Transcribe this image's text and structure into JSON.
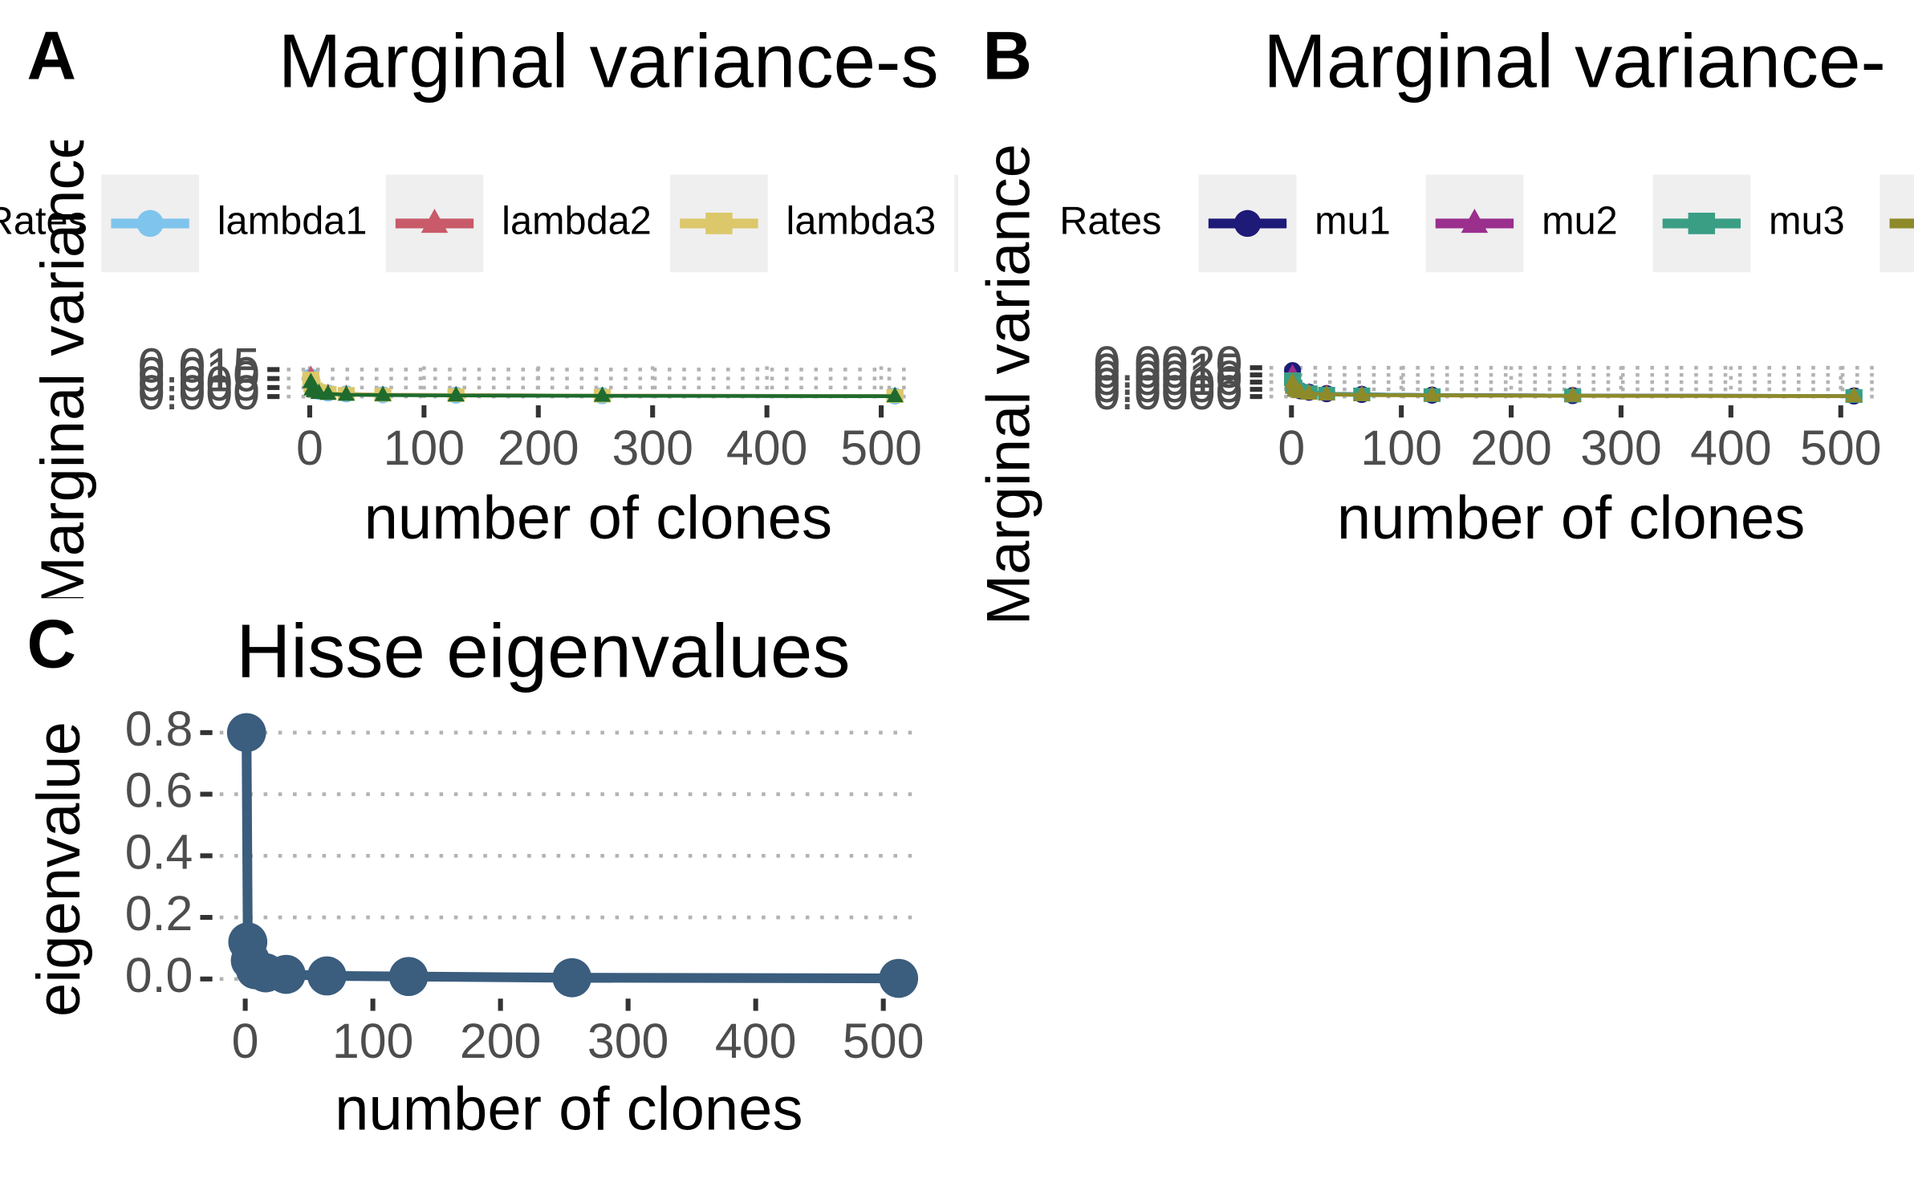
{
  "chart_data": [
    {
      "type": "line",
      "panel": "A",
      "title": "Marginal variance-s",
      "xlabel": "number of clones",
      "ylabel": "Marginal variance",
      "legend_title": "Rates",
      "x": [
        1,
        2,
        4,
        8,
        16,
        32,
        64,
        128,
        256,
        512
      ],
      "series": [
        {
          "name": "lambda1",
          "color": "#7fc4ec",
          "marker": "circle",
          "values": [
            0.011,
            0.006,
            0.004,
            0.003,
            0.002,
            0.0015,
            0.001,
            0.0008,
            0.0005,
            0.0003
          ]
        },
        {
          "name": "lambda2",
          "color": "#c85a6a",
          "marker": "triangle",
          "values": [
            0.012,
            0.007,
            0.004,
            0.003,
            0.002,
            0.0015,
            0.001,
            0.0008,
            0.0005,
            0.0003
          ]
        },
        {
          "name": "lambda3",
          "color": "#dcc76a",
          "marker": "square",
          "values": [
            0.01,
            0.006,
            0.004,
            0.003,
            0.002,
            0.0015,
            0.001,
            0.0008,
            0.0005,
            0.0003
          ]
        },
        {
          "color": "#1f6b2e",
          "marker": "triangle",
          "values": [
            0.008,
            0.004,
            0.003,
            0.002,
            0.0015,
            0.001,
            0.0008,
            0.0006,
            0.0004,
            0.0002
          ]
        }
      ],
      "xlim": [
        -20,
        530
      ],
      "xticks": [
        0,
        100,
        200,
        300,
        400,
        500
      ],
      "ylim": [
        -0.0008,
        0.0168
      ],
      "yticks": [
        {
          "value": 0,
          "label": "0.000"
        },
        {
          "value": 0.005,
          "label": "0.005"
        },
        {
          "value": 0.01,
          "label": "0.010"
        },
        {
          "value": 0.015,
          "label": "0.015"
        }
      ],
      "grid": "both"
    },
    {
      "type": "line",
      "panel": "B",
      "title": "Marginal variance-",
      "xlabel": "number of clones",
      "ylabel": "Marginal variance",
      "legend_title": "Rates",
      "x": [
        1,
        2,
        4,
        8,
        16,
        32,
        64,
        128,
        256,
        512
      ],
      "series": [
        {
          "name": "mu1",
          "color": "#1e1a78",
          "marker": "circle",
          "values": [
            0.0018,
            0.0009,
            0.0005,
            0.0004,
            0.0003,
            0.0002,
            0.00015,
            0.0001,
            7e-05,
            4e-05
          ]
        },
        {
          "name": "mu2",
          "color": "#9a2f8e",
          "marker": "triangle",
          "values": [
            0.0016,
            0.0008,
            0.0005,
            0.0004,
            0.0003,
            0.0002,
            0.00015,
            0.0001,
            7e-05,
            4e-05
          ]
        },
        {
          "name": "mu3",
          "color": "#3a9e85",
          "marker": "square",
          "values": [
            0.0012,
            0.0007,
            0.0005,
            0.0004,
            0.0003,
            0.0002,
            0.00015,
            0.0001,
            7e-05,
            4e-05
          ]
        },
        {
          "color": "#8e8a2a",
          "marker": "triangle",
          "values": [
            0.001,
            0.0006,
            0.0004,
            0.0003,
            0.0002,
            0.00015,
            0.0001,
            8e-05,
            5e-05,
            3e-05
          ]
        }
      ],
      "xlim": [
        -20,
        530
      ],
      "xticks": [
        0,
        100,
        200,
        300,
        400,
        500
      ],
      "ylim": [
        -0.0001,
        0.0021
      ],
      "yticks": [
        {
          "value": 0,
          "label": "0.0000"
        },
        {
          "value": 0.0005,
          "label": "0.0005"
        },
        {
          "value": 0.001,
          "label": "0.0010"
        },
        {
          "value": 0.0015,
          "label": "0.0015"
        },
        {
          "value": 0.002,
          "label": "0.0020"
        }
      ],
      "grid": "both"
    },
    {
      "type": "line",
      "panel": "C",
      "title": "Hisse eigenvalues",
      "xlabel": "number of clones",
      "ylabel": "eigenvalue",
      "x": [
        1,
        2,
        4,
        8,
        16,
        32,
        64,
        128,
        256,
        512
      ],
      "series": [
        {
          "color": "#3b5d7e",
          "marker": "circle",
          "values": [
            0.8,
            0.12,
            0.06,
            0.03,
            0.02,
            0.015,
            0.01,
            0.008,
            0.004,
            0.002
          ]
        }
      ],
      "xlim": [
        -20,
        530
      ],
      "xticks": [
        0,
        100,
        200,
        300,
        400,
        500
      ],
      "ylim": [
        -0.04,
        0.84
      ],
      "yticks": [
        {
          "value": 0,
          "label": "0.0"
        },
        0.2,
        0.4,
        0.6,
        0.8
      ],
      "grid": "y"
    }
  ]
}
